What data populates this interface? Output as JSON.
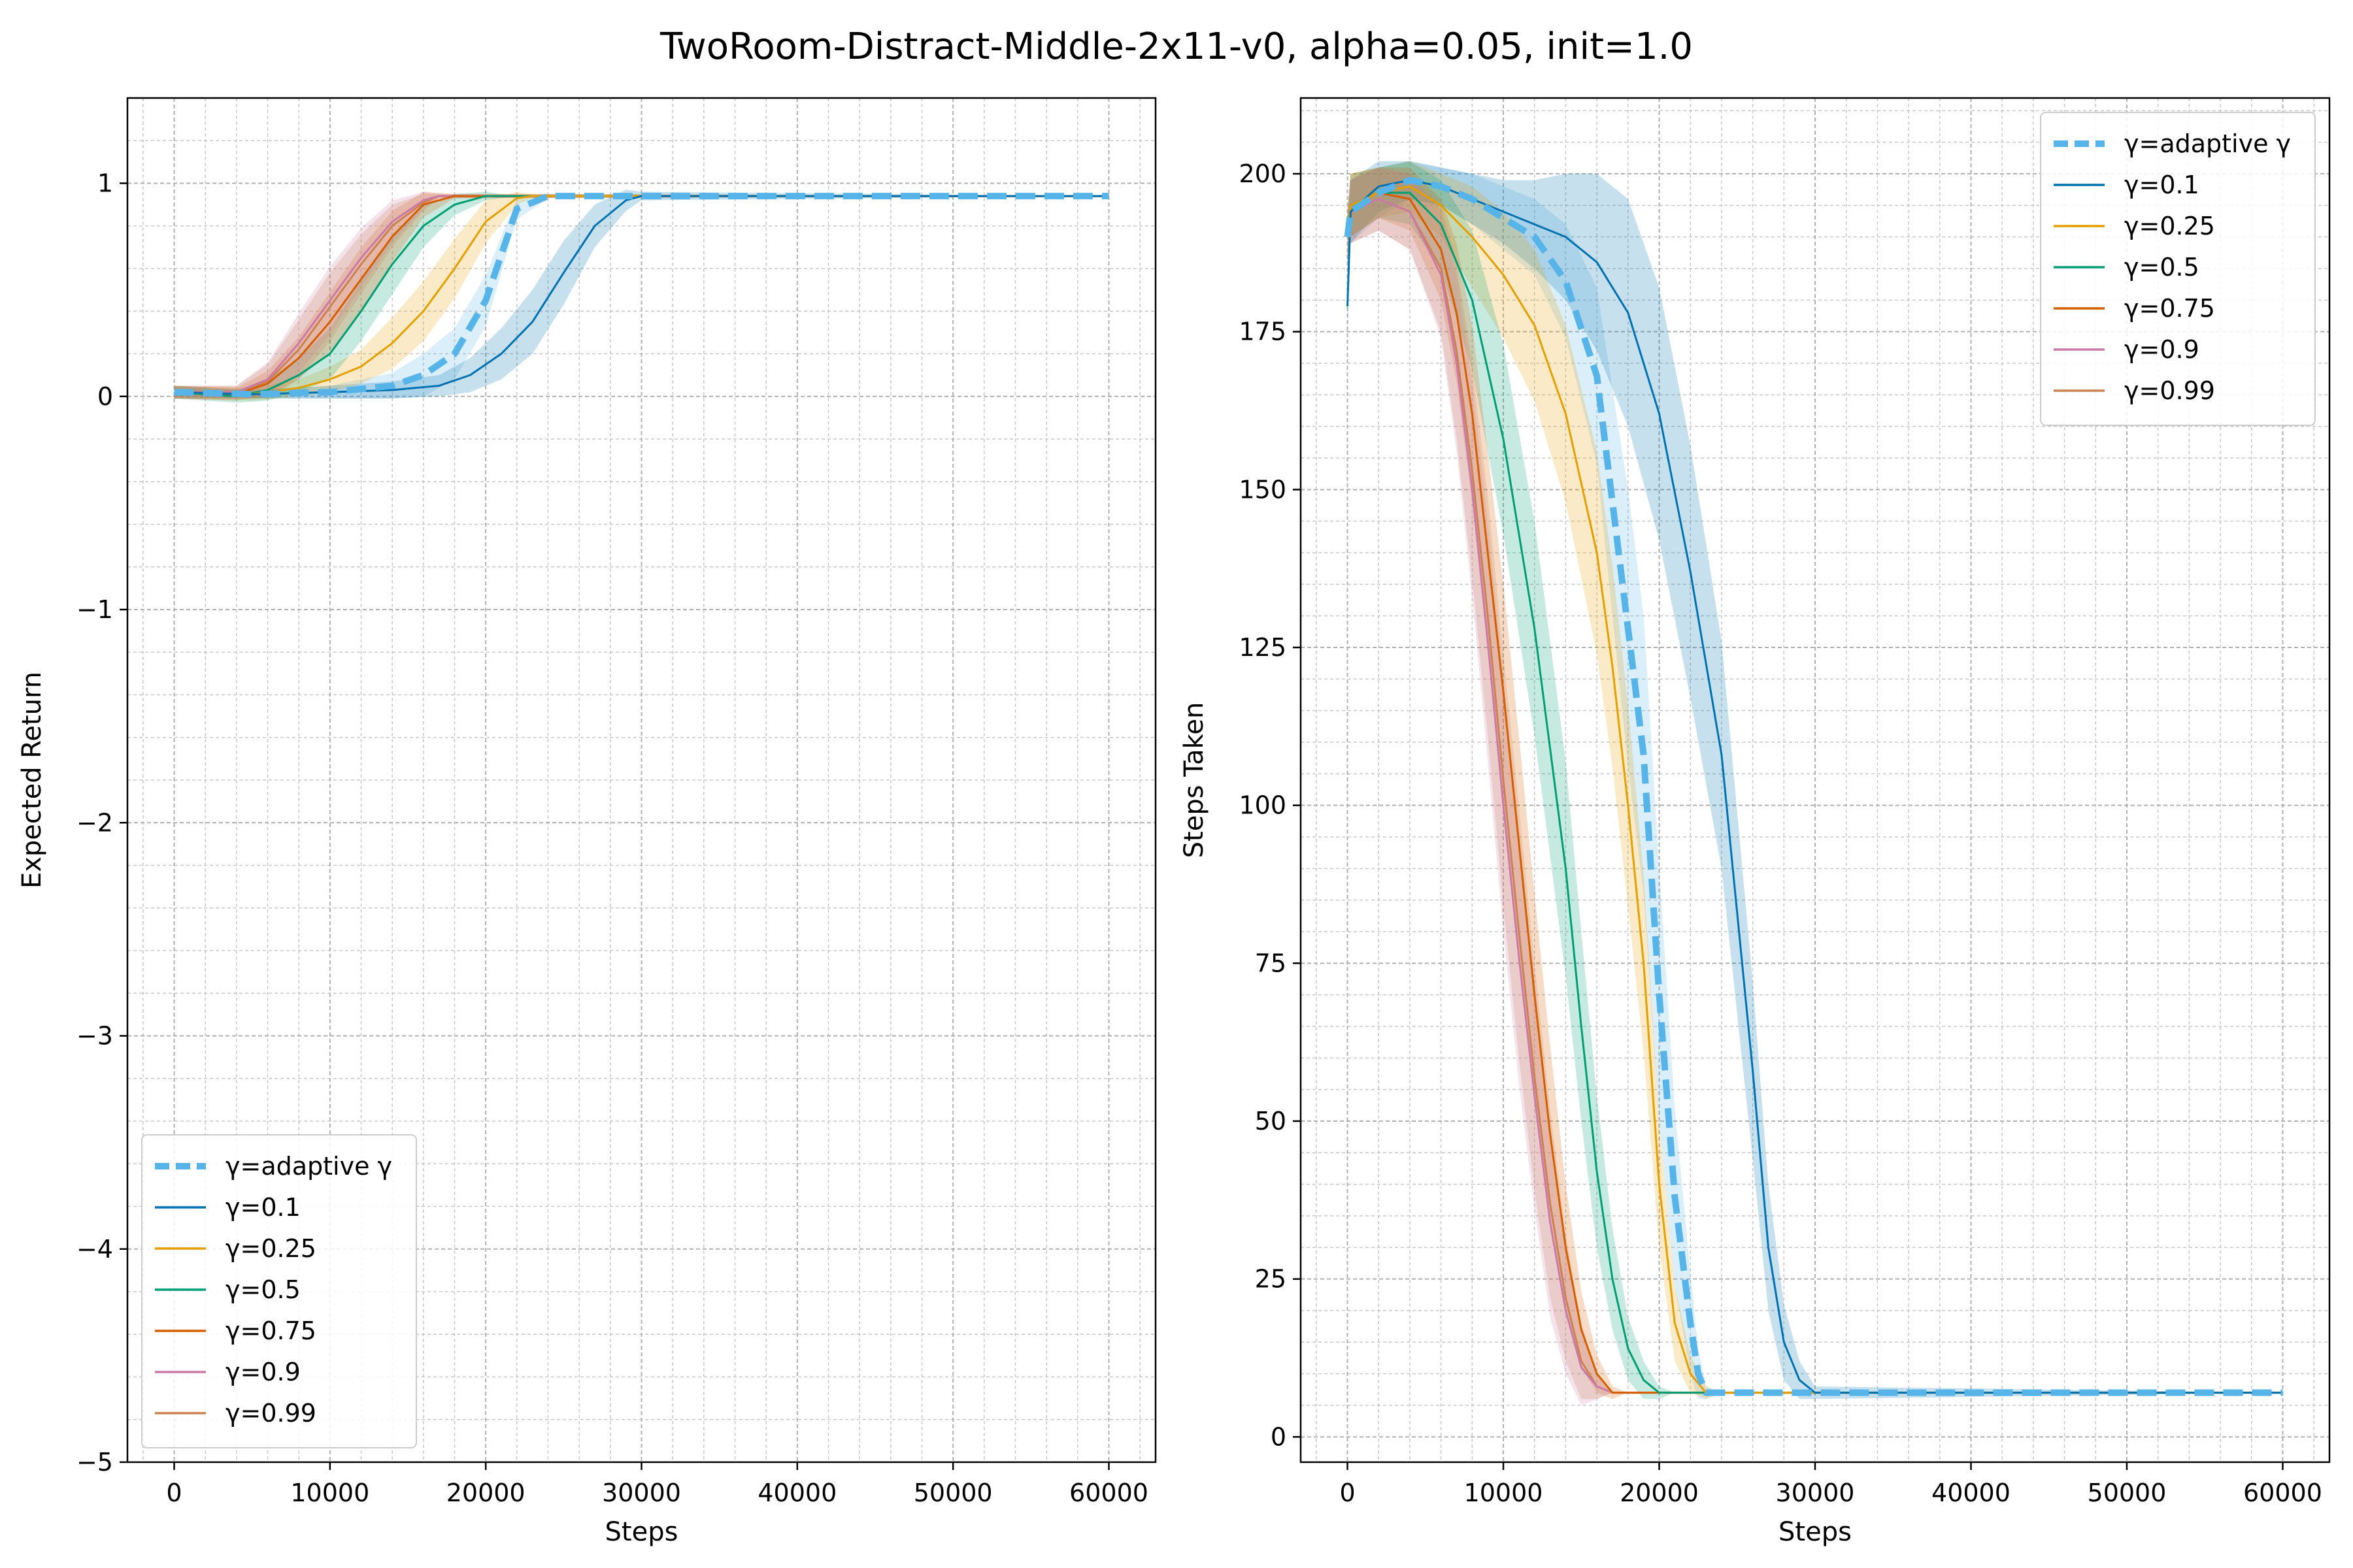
{
  "suptitle": "TwoRoom-Distract-Middle-2x11-v0, alpha=0.05, init=1.0",
  "chart_data": [
    {
      "type": "line",
      "xlabel": "Steps",
      "ylabel": "Expected Return",
      "xlim": [
        -3000,
        63000
      ],
      "ylim": [
        -5,
        1.4
      ],
      "xticks": [
        0,
        10000,
        20000,
        30000,
        40000,
        50000,
        60000
      ],
      "xtick_labels": [
        "0",
        "10000",
        "20000",
        "30000",
        "40000",
        "50000",
        "60000"
      ],
      "yticks": [
        -5,
        -4,
        -3,
        -2,
        -1,
        0,
        1
      ],
      "ytick_labels": [
        "−5",
        "−4",
        "−3",
        "−2",
        "−1",
        "0",
        "1"
      ],
      "grid": true,
      "legend_position": "lower-left",
      "series": [
        {
          "name": "γ=adaptive γ",
          "color": "#56b4e9",
          "dashed": true,
          "x": [
            0,
            5000,
            10000,
            14000,
            16000,
            18000,
            20000,
            22000,
            24000,
            60000
          ],
          "y": [
            0.02,
            0.01,
            0.02,
            0.05,
            0.1,
            0.2,
            0.45,
            0.88,
            0.94,
            0.94
          ],
          "band": [
            0.02,
            0.02,
            0.03,
            0.06,
            0.1,
            0.12,
            0.12,
            0.05,
            0.01,
            0.0
          ]
        },
        {
          "name": "γ=0.1",
          "color": "#0072b2",
          "dashed": false,
          "x": [
            0,
            5000,
            10000,
            14000,
            17000,
            19000,
            21000,
            23000,
            25000,
            27000,
            29000,
            30000,
            60000
          ],
          "y": [
            0.02,
            0.01,
            0.02,
            0.03,
            0.05,
            0.1,
            0.2,
            0.35,
            0.58,
            0.8,
            0.92,
            0.94,
            0.94
          ],
          "band": [
            0.03,
            0.02,
            0.03,
            0.04,
            0.05,
            0.08,
            0.12,
            0.15,
            0.15,
            0.1,
            0.05,
            0.02,
            0.0
          ]
        },
        {
          "name": "γ=0.25",
          "color": "#e69f00",
          "dashed": false,
          "x": [
            0,
            5000,
            8000,
            10000,
            12000,
            14000,
            16000,
            18000,
            20000,
            22000,
            23000,
            60000
          ],
          "y": [
            0.02,
            0.01,
            0.04,
            0.08,
            0.14,
            0.25,
            0.4,
            0.6,
            0.82,
            0.93,
            0.94,
            0.94
          ],
          "band": [
            0.03,
            0.03,
            0.04,
            0.06,
            0.08,
            0.12,
            0.14,
            0.14,
            0.1,
            0.03,
            0.01,
            0.0
          ]
        },
        {
          "name": "γ=0.5",
          "color": "#009e73",
          "dashed": false,
          "x": [
            0,
            4000,
            6000,
            8000,
            10000,
            12000,
            14000,
            16000,
            18000,
            20000,
            22000,
            60000
          ],
          "y": [
            0.02,
            0.0,
            0.03,
            0.1,
            0.2,
            0.4,
            0.62,
            0.8,
            0.9,
            0.94,
            0.94,
            0.94
          ],
          "band": [
            0.03,
            0.03,
            0.05,
            0.08,
            0.12,
            0.14,
            0.14,
            0.1,
            0.05,
            0.02,
            0.0,
            0.0
          ]
        },
        {
          "name": "γ=0.75",
          "color": "#d55e00",
          "dashed": false,
          "x": [
            0,
            4000,
            6000,
            8000,
            10000,
            12000,
            14000,
            16000,
            18000,
            60000
          ],
          "y": [
            0.02,
            0.01,
            0.06,
            0.18,
            0.35,
            0.55,
            0.75,
            0.9,
            0.94,
            0.94
          ],
          "band": [
            0.03,
            0.03,
            0.06,
            0.1,
            0.14,
            0.15,
            0.12,
            0.06,
            0.01,
            0.0
          ]
        },
        {
          "name": "γ=0.9",
          "color": "#cc79a7",
          "dashed": false,
          "x": [
            0,
            4000,
            6000,
            8000,
            10000,
            12000,
            14000,
            16000,
            17000,
            60000
          ],
          "y": [
            0.02,
            0.02,
            0.08,
            0.25,
            0.45,
            0.65,
            0.82,
            0.92,
            0.94,
            0.94
          ],
          "band": [
            0.03,
            0.03,
            0.08,
            0.14,
            0.16,
            0.14,
            0.1,
            0.04,
            0.01,
            0.0
          ]
        },
        {
          "name": "γ=0.99",
          "color": "#ca8250",
          "dashed": false,
          "x": [
            0,
            4000,
            6000,
            8000,
            10000,
            12000,
            14000,
            16000,
            17000,
            60000
          ],
          "y": [
            0.02,
            0.02,
            0.07,
            0.22,
            0.42,
            0.62,
            0.8,
            0.91,
            0.94,
            0.94
          ],
          "band": [
            0.03,
            0.03,
            0.08,
            0.14,
            0.16,
            0.14,
            0.1,
            0.04,
            0.01,
            0.0
          ]
        }
      ]
    },
    {
      "type": "line",
      "xlabel": "Steps",
      "ylabel": "Steps Taken",
      "xlim": [
        -3000,
        63000
      ],
      "ylim": [
        -4,
        212
      ],
      "xticks": [
        0,
        10000,
        20000,
        30000,
        40000,
        50000,
        60000
      ],
      "xtick_labels": [
        "0",
        "10000",
        "20000",
        "30000",
        "40000",
        "50000",
        "60000"
      ],
      "yticks": [
        0,
        25,
        50,
        75,
        100,
        125,
        150,
        175,
        200
      ],
      "ytick_labels": [
        "0",
        "25",
        "50",
        "75",
        "100",
        "125",
        "150",
        "175",
        "200"
      ],
      "grid": true,
      "legend_position": "upper-right",
      "series": [
        {
          "name": "γ=adaptive γ",
          "color": "#56b4e9",
          "dashed": true,
          "x": [
            0,
            200,
            2000,
            4000,
            6000,
            8000,
            10000,
            12000,
            14000,
            16000,
            17000,
            18000,
            19000,
            20000,
            21000,
            22000,
            22500,
            23000,
            24000,
            60000
          ],
          "y": [
            190,
            194,
            197,
            199,
            198,
            196,
            193,
            190,
            183,
            168,
            148,
            128,
            108,
            70,
            38,
            18,
            10,
            7,
            7,
            7
          ],
          "band": [
            4,
            5,
            4,
            3,
            3,
            4,
            5,
            6,
            9,
            14,
            18,
            22,
            22,
            20,
            14,
            8,
            4,
            1,
            0,
            0
          ]
        },
        {
          "name": "γ=0.1",
          "color": "#0072b2",
          "dashed": false,
          "x": [
            0,
            200,
            2000,
            4000,
            6000,
            8000,
            10000,
            12000,
            14000,
            16000,
            18000,
            20000,
            22000,
            24000,
            26000,
            27000,
            28000,
            29000,
            30000,
            60000
          ],
          "y": [
            179,
            194,
            198,
            199,
            198,
            196,
            194,
            192,
            190,
            186,
            178,
            162,
            137,
            108,
            58,
            30,
            15,
            9,
            7,
            7
          ],
          "band": [
            4,
            5,
            4,
            3,
            3,
            4,
            5,
            7,
            10,
            14,
            18,
            20,
            20,
            18,
            14,
            10,
            6,
            3,
            1,
            0
          ]
        },
        {
          "name": "γ=0.25",
          "color": "#e69f00",
          "dashed": false,
          "x": [
            0,
            200,
            2000,
            4000,
            6000,
            8000,
            10000,
            12000,
            14000,
            16000,
            17000,
            18000,
            19000,
            20000,
            21000,
            22000,
            23000,
            24000,
            60000
          ],
          "y": [
            190,
            195,
            197,
            198,
            195,
            190,
            184,
            176,
            162,
            140,
            122,
            100,
            75,
            40,
            18,
            10,
            7,
            7,
            7
          ],
          "band": [
            4,
            5,
            4,
            4,
            5,
            8,
            10,
            12,
            14,
            16,
            16,
            16,
            14,
            10,
            6,
            3,
            1,
            0,
            0
          ]
        },
        {
          "name": "γ=0.5",
          "color": "#009e73",
          "dashed": false,
          "x": [
            0,
            200,
            2000,
            4000,
            6000,
            8000,
            10000,
            12000,
            14000,
            15000,
            16000,
            17000,
            18000,
            19000,
            20000,
            21000,
            60000
          ],
          "y": [
            190,
            195,
            197,
            197,
            192,
            180,
            158,
            128,
            90,
            65,
            42,
            25,
            14,
            9,
            7,
            7,
            7
          ],
          "band": [
            4,
            5,
            4,
            5,
            7,
            11,
            15,
            17,
            17,
            15,
            12,
            8,
            5,
            3,
            1,
            0,
            0
          ]
        },
        {
          "name": "γ=0.75",
          "color": "#d55e00",
          "dashed": false,
          "x": [
            0,
            200,
            2000,
            4000,
            6000,
            7000,
            8000,
            9000,
            10000,
            11000,
            12000,
            13000,
            14000,
            15000,
            16000,
            17000,
            18000,
            60000
          ],
          "y": [
            190,
            195,
            197,
            196,
            188,
            178,
            162,
            140,
            118,
            94,
            70,
            48,
            30,
            17,
            10,
            7,
            7,
            7
          ],
          "band": [
            4,
            5,
            4,
            5,
            8,
            11,
            14,
            16,
            17,
            17,
            16,
            14,
            10,
            6,
            3,
            1,
            0,
            0
          ]
        },
        {
          "name": "γ=0.9",
          "color": "#cc79a7",
          "dashed": false,
          "x": [
            0,
            200,
            2000,
            4000,
            6000,
            7000,
            8000,
            9000,
            10000,
            11000,
            12000,
            13000,
            14000,
            15000,
            16000,
            17000,
            60000
          ],
          "y": [
            190,
            194,
            196,
            194,
            184,
            170,
            150,
            126,
            100,
            76,
            54,
            34,
            20,
            11,
            8,
            7,
            7
          ],
          "band": [
            4,
            5,
            5,
            6,
            10,
            14,
            17,
            19,
            20,
            20,
            18,
            15,
            10,
            6,
            2,
            0,
            0
          ]
        },
        {
          "name": "γ=0.99",
          "color": "#ca8250",
          "dashed": false,
          "x": [
            0,
            200,
            2000,
            4000,
            6000,
            7000,
            8000,
            9000,
            10000,
            11000,
            12000,
            13000,
            14000,
            15000,
            16000,
            17000,
            60000
          ],
          "y": [
            190,
            194,
            196,
            194,
            185,
            172,
            153,
            130,
            104,
            80,
            57,
            37,
            22,
            12,
            8,
            7,
            7
          ],
          "band": [
            4,
            5,
            5,
            6,
            10,
            14,
            17,
            19,
            20,
            20,
            18,
            15,
            10,
            6,
            2,
            0,
            0
          ]
        }
      ]
    }
  ]
}
